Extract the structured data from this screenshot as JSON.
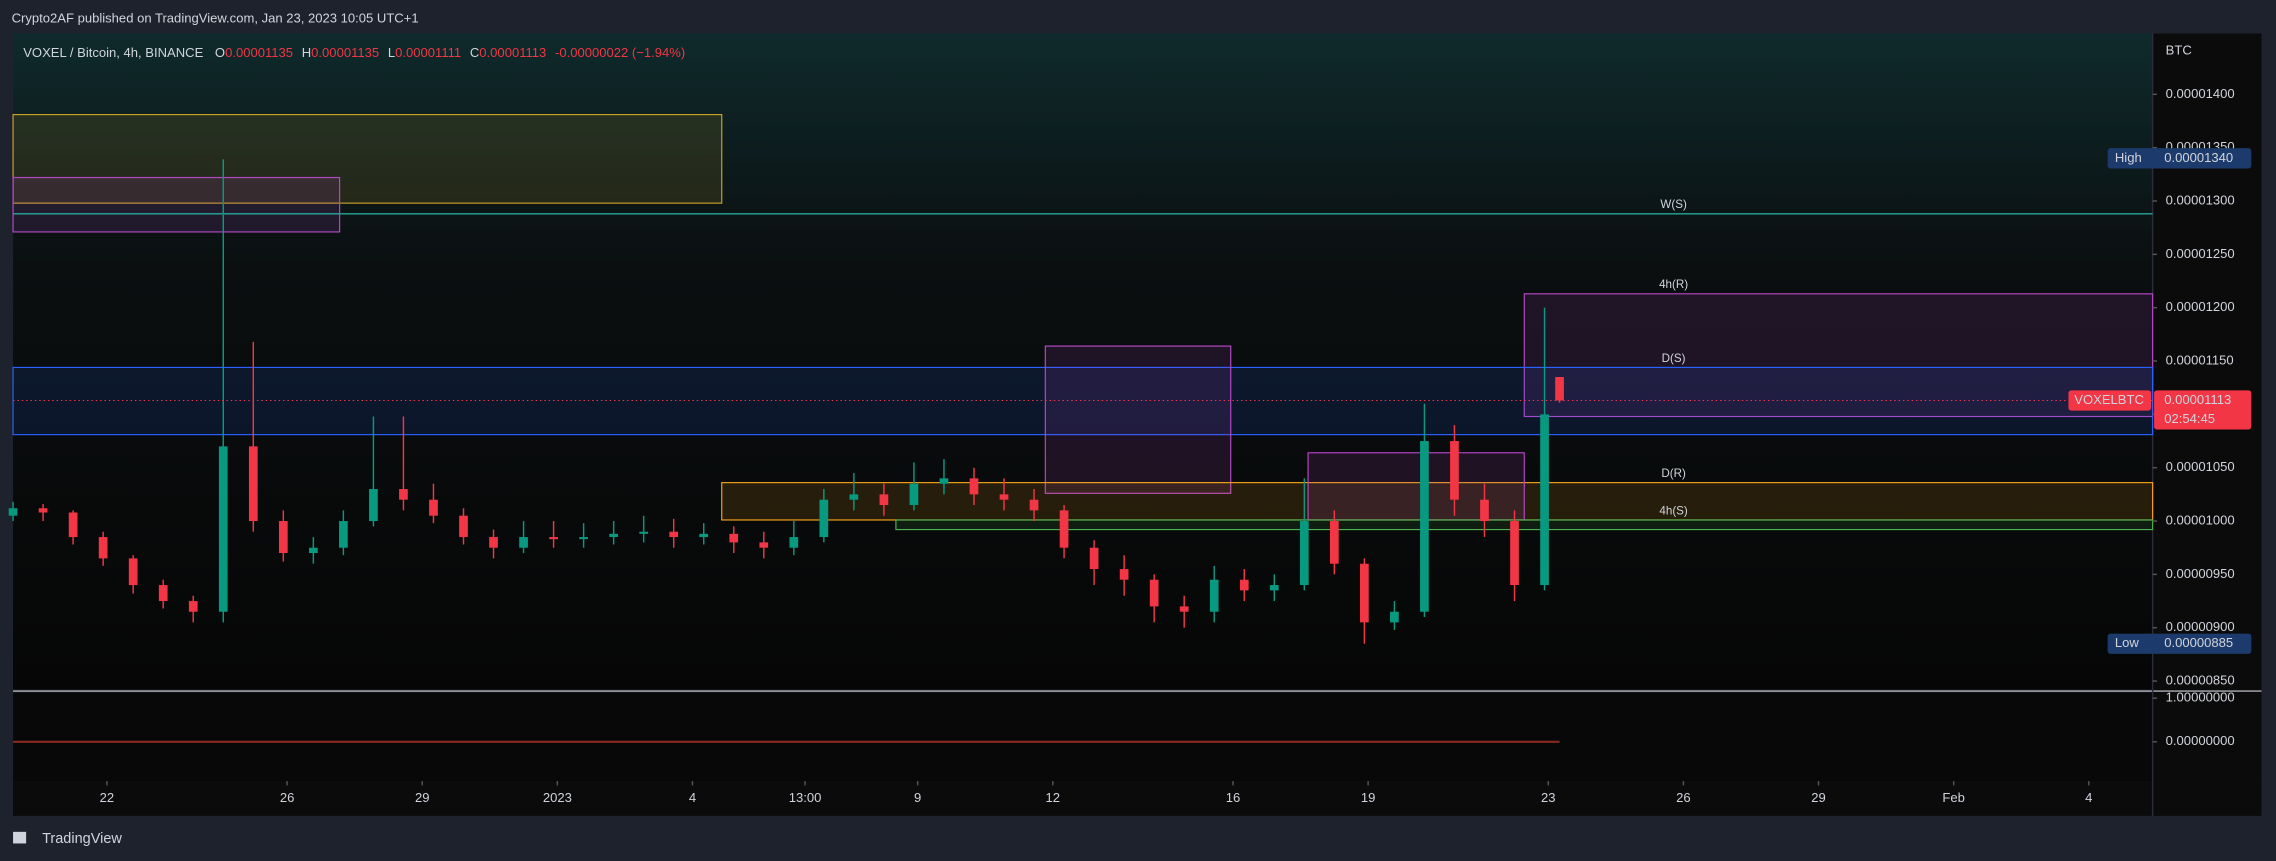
{
  "header": {
    "text": "Crypto2AF published on TradingView.com, Jan 23, 2023 10:05 UTC+1"
  },
  "footer": {
    "brand": "TradingView"
  },
  "chart_data": {
    "type": "candlestick",
    "title": "VOXEL / Bitcoin, 4h, BINANCE",
    "ohlc_legend": [
      {
        "key": "O",
        "value": "0.00001135"
      },
      {
        "key": "H",
        "value": "0.00001135"
      },
      {
        "key": "L",
        "value": "0.00001111"
      },
      {
        "key": "C",
        "value": "0.00001113"
      }
    ],
    "change": "-0.00000022 (−1.94%)",
    "unit": "BTC",
    "symbol": "VOXELBTC",
    "countdown": "02:54:45",
    "up_color": "#089981",
    "down_color": "#f23645",
    "x": [
      0,
      4,
      8,
      12,
      16,
      20,
      24,
      28,
      32,
      36,
      40,
      44,
      48,
      52,
      56,
      60,
      64,
      68,
      72,
      76,
      80,
      84,
      88,
      92,
      96,
      100,
      104,
      108,
      112,
      116,
      120,
      124,
      128,
      132,
      136,
      140,
      144,
      148,
      152,
      156,
      160,
      164,
      168,
      172,
      176,
      180,
      184,
      188,
      192,
      196,
      200,
      204,
      206
    ],
    "open": [
      1.005e-05,
      1.012e-05,
      1.008e-05,
      9.85e-06,
      9.65e-06,
      9.4e-06,
      9.25e-06,
      9.15e-06,
      1.07e-05,
      1e-05,
      9.7e-06,
      9.75e-06,
      1e-05,
      1.03e-05,
      1.02e-05,
      1.005e-05,
      9.85e-06,
      9.75e-06,
      9.85e-06,
      9.83e-06,
      9.85e-06,
      9.88e-06,
      9.9e-06,
      9.85e-06,
      9.88e-06,
      9.8e-06,
      9.75e-06,
      9.85e-06,
      1.02e-05,
      1.025e-05,
      1.015e-05,
      1.035e-05,
      1.04e-05,
      1.025e-05,
      1.02e-05,
      1.01e-05,
      9.75e-06,
      9.55e-06,
      9.45e-06,
      9.2e-06,
      9.15e-06,
      9.45e-06,
      9.35e-06,
      9.4e-06,
      1e-05,
      9.6e-06,
      9.05e-06,
      9.15e-06,
      1.075e-05,
      1.02e-05,
      1e-05,
      9.4e-06,
      1.135e-05
    ],
    "high": [
      1.018e-05,
      1.016e-05,
      1.01e-05,
      9.9e-06,
      9.68e-06,
      9.45e-06,
      9.3e-06,
      1.339e-05,
      1.168e-05,
      1.01e-05,
      9.85e-06,
      1.01e-05,
      1.098e-05,
      1.098e-05,
      1.035e-05,
      1.012e-05,
      9.92e-06,
      1e-05,
      1e-05,
      9.98e-06,
      1e-05,
      1.005e-05,
      1.002e-05,
      9.98e-06,
      9.95e-06,
      9.9e-06,
      1e-05,
      1.03e-05,
      1.045e-05,
      1.035e-05,
      1.055e-05,
      1.058e-05,
      1.05e-05,
      1.04e-05,
      1.03e-05,
      1.015e-05,
      9.82e-06,
      9.68e-06,
      9.5e-06,
      9.3e-06,
      9.58e-06,
      9.55e-06,
      9.5e-06,
      1.04e-05,
      1.01e-05,
      9.65e-06,
      9.25e-06,
      1.11e-05,
      1.09e-05,
      1.035e-05,
      1.01e-05,
      1.2e-05,
      1.135e-05
    ],
    "low": [
      1e-05,
      1e-05,
      9.78e-06,
      9.58e-06,
      9.32e-06,
      9.18e-06,
      9.05e-06,
      9.05e-06,
      9.9e-06,
      9.62e-06,
      9.6e-06,
      9.68e-06,
      9.95e-06,
      1.01e-05,
      9.98e-06,
      9.78e-06,
      9.65e-06,
      9.7e-06,
      9.75e-06,
      9.75e-06,
      9.78e-06,
      9.8e-06,
      9.75e-06,
      9.78e-06,
      9.7e-06,
      9.65e-06,
      9.68e-06,
      9.8e-06,
      1.01e-05,
      1.005e-05,
      1.01e-05,
      1.025e-05,
      1.015e-05,
      1.01e-05,
      1e-05,
      9.65e-06,
      9.4e-06,
      9.3e-06,
      9.05e-06,
      9e-06,
      9.05e-06,
      9.25e-06,
      9.25e-06,
      9.35e-06,
      9.5e-06,
      8.85e-06,
      8.98e-06,
      9.1e-06,
      1.005e-05,
      9.85e-06,
      9.25e-06,
      9.35e-06,
      1.111e-05
    ],
    "close": [
      1.012e-05,
      1.008e-05,
      9.85e-06,
      9.65e-06,
      9.4e-06,
      9.25e-06,
      9.15e-06,
      1.07e-05,
      1e-05,
      9.7e-06,
      9.75e-06,
      1e-05,
      1.03e-05,
      1.02e-05,
      1.005e-05,
      9.85e-06,
      9.75e-06,
      9.85e-06,
      9.83e-06,
      9.85e-06,
      9.88e-06,
      9.9e-06,
      9.85e-06,
      9.88e-06,
      9.8e-06,
      9.75e-06,
      9.85e-06,
      1.02e-05,
      1.025e-05,
      1.015e-05,
      1.035e-05,
      1.04e-05,
      1.025e-05,
      1.02e-05,
      1.01e-05,
      9.75e-06,
      9.55e-06,
      9.45e-06,
      9.2e-06,
      9.15e-06,
      9.45e-06,
      9.35e-06,
      9.4e-06,
      1e-05,
      9.6e-06,
      9.05e-06,
      9.15e-06,
      1.075e-05,
      1.02e-05,
      1e-05,
      9.4e-06,
      1.1e-05,
      1.113e-05
    ],
    "zones": [
      {
        "x": [
          0,
          94.4
        ],
        "y": [
          1.298e-05,
          1.381e-05
        ],
        "color": "#c9a227"
      },
      {
        "x": [
          0,
          43.5
        ],
        "y": [
          1.271e-05,
          1.322e-05
        ],
        "color": "#b548c6"
      },
      {
        "label": "W(S)",
        "x": [
          0,
          285
        ],
        "y": [
          1.288e-05,
          1.288e-05
        ],
        "color": "#26a69a"
      },
      {
        "label": "4h(R)",
        "x": [
          201.3,
          285
        ],
        "y": [
          1.098e-05,
          1.213e-05
        ],
        "color": "#b548c6"
      },
      {
        "label": "D(S)",
        "x": [
          0,
          285
        ],
        "y": [
          1.081e-05,
          1.144e-05
        ],
        "color": "#2962ff"
      },
      {
        "x": [
          137.5,
          162.2
        ],
        "y": [
          1.026e-05,
          1.164e-05
        ],
        "color": "#b548c6"
      },
      {
        "label": "D(R)",
        "x": [
          94.4,
          285
        ],
        "y": [
          1.001e-05,
          1.036e-05
        ],
        "color": "#f7a21b"
      },
      {
        "x": [
          172.5,
          201.3
        ],
        "y": [
          1.001e-05,
          1.064e-05
        ],
        "color": "#b548c6"
      },
      {
        "label": "4h(S)",
        "x": [
          117.6,
          285
        ],
        "y": [
          9.92e-06,
          1.001e-05
        ],
        "color": "#4caf50"
      }
    ],
    "high_marker": {
      "name": "High",
      "value": 1.34e-05,
      "label": "0.00001340"
    },
    "low_marker": {
      "name": "Low",
      "value": 8.85e-06,
      "label": "0.00000885"
    },
    "last": 1.113e-05,
    "xlim": [
      0,
      285
    ],
    "ylim": [
      8.42e-06,
      1.457e-05
    ],
    "xticks": [
      {
        "value": 12.5,
        "label": "22"
      },
      {
        "value": 36.5,
        "label": "26"
      },
      {
        "value": 54.5,
        "label": "29"
      },
      {
        "value": 72.5,
        "label": "2023"
      },
      {
        "value": 90.5,
        "label": "4"
      },
      {
        "value": 105.5,
        "label": "13:00"
      },
      {
        "value": 120.5,
        "label": "9"
      },
      {
        "value": 138.5,
        "label": "12"
      },
      {
        "value": 162.5,
        "label": "16"
      },
      {
        "value": 180.5,
        "label": "19"
      },
      {
        "value": 204.5,
        "label": "23"
      },
      {
        "value": 222.5,
        "label": "26"
      },
      {
        "value": 240.5,
        "label": "29"
      },
      {
        "value": 258.5,
        "label": "Feb"
      },
      {
        "value": 276.5,
        "label": "4"
      }
    ],
    "yticks": [
      {
        "value": 8.5e-06,
        "label": "0.00000850"
      },
      {
        "value": 9e-06,
        "label": "0.00000900"
      },
      {
        "value": 9.5e-06,
        "label": "0.00000950"
      },
      {
        "value": 1e-05,
        "label": "0.00001000"
      },
      {
        "value": 1.05e-05,
        "label": "0.00001050"
      },
      {
        "value": 1.1e-05,
        "label": "0.00001100"
      },
      {
        "value": 1.15e-05,
        "label": "0.00001150"
      },
      {
        "value": 1.2e-05,
        "label": "0.00001200"
      },
      {
        "value": 1.25e-05,
        "label": "0.00001250"
      },
      {
        "value": 1.3e-05,
        "label": "0.00001300"
      },
      {
        "value": 1.35e-05,
        "label": "0.00001350"
      },
      {
        "value": 1.4e-05,
        "label": "0.00001400"
      }
    ],
    "indicator": {
      "ylim": [
        -0.9,
        1.13
      ],
      "yticks": [
        {
          "value": 1,
          "label": "1.00000000"
        },
        {
          "value": 0,
          "label": "0.00000000"
        }
      ]
    }
  }
}
